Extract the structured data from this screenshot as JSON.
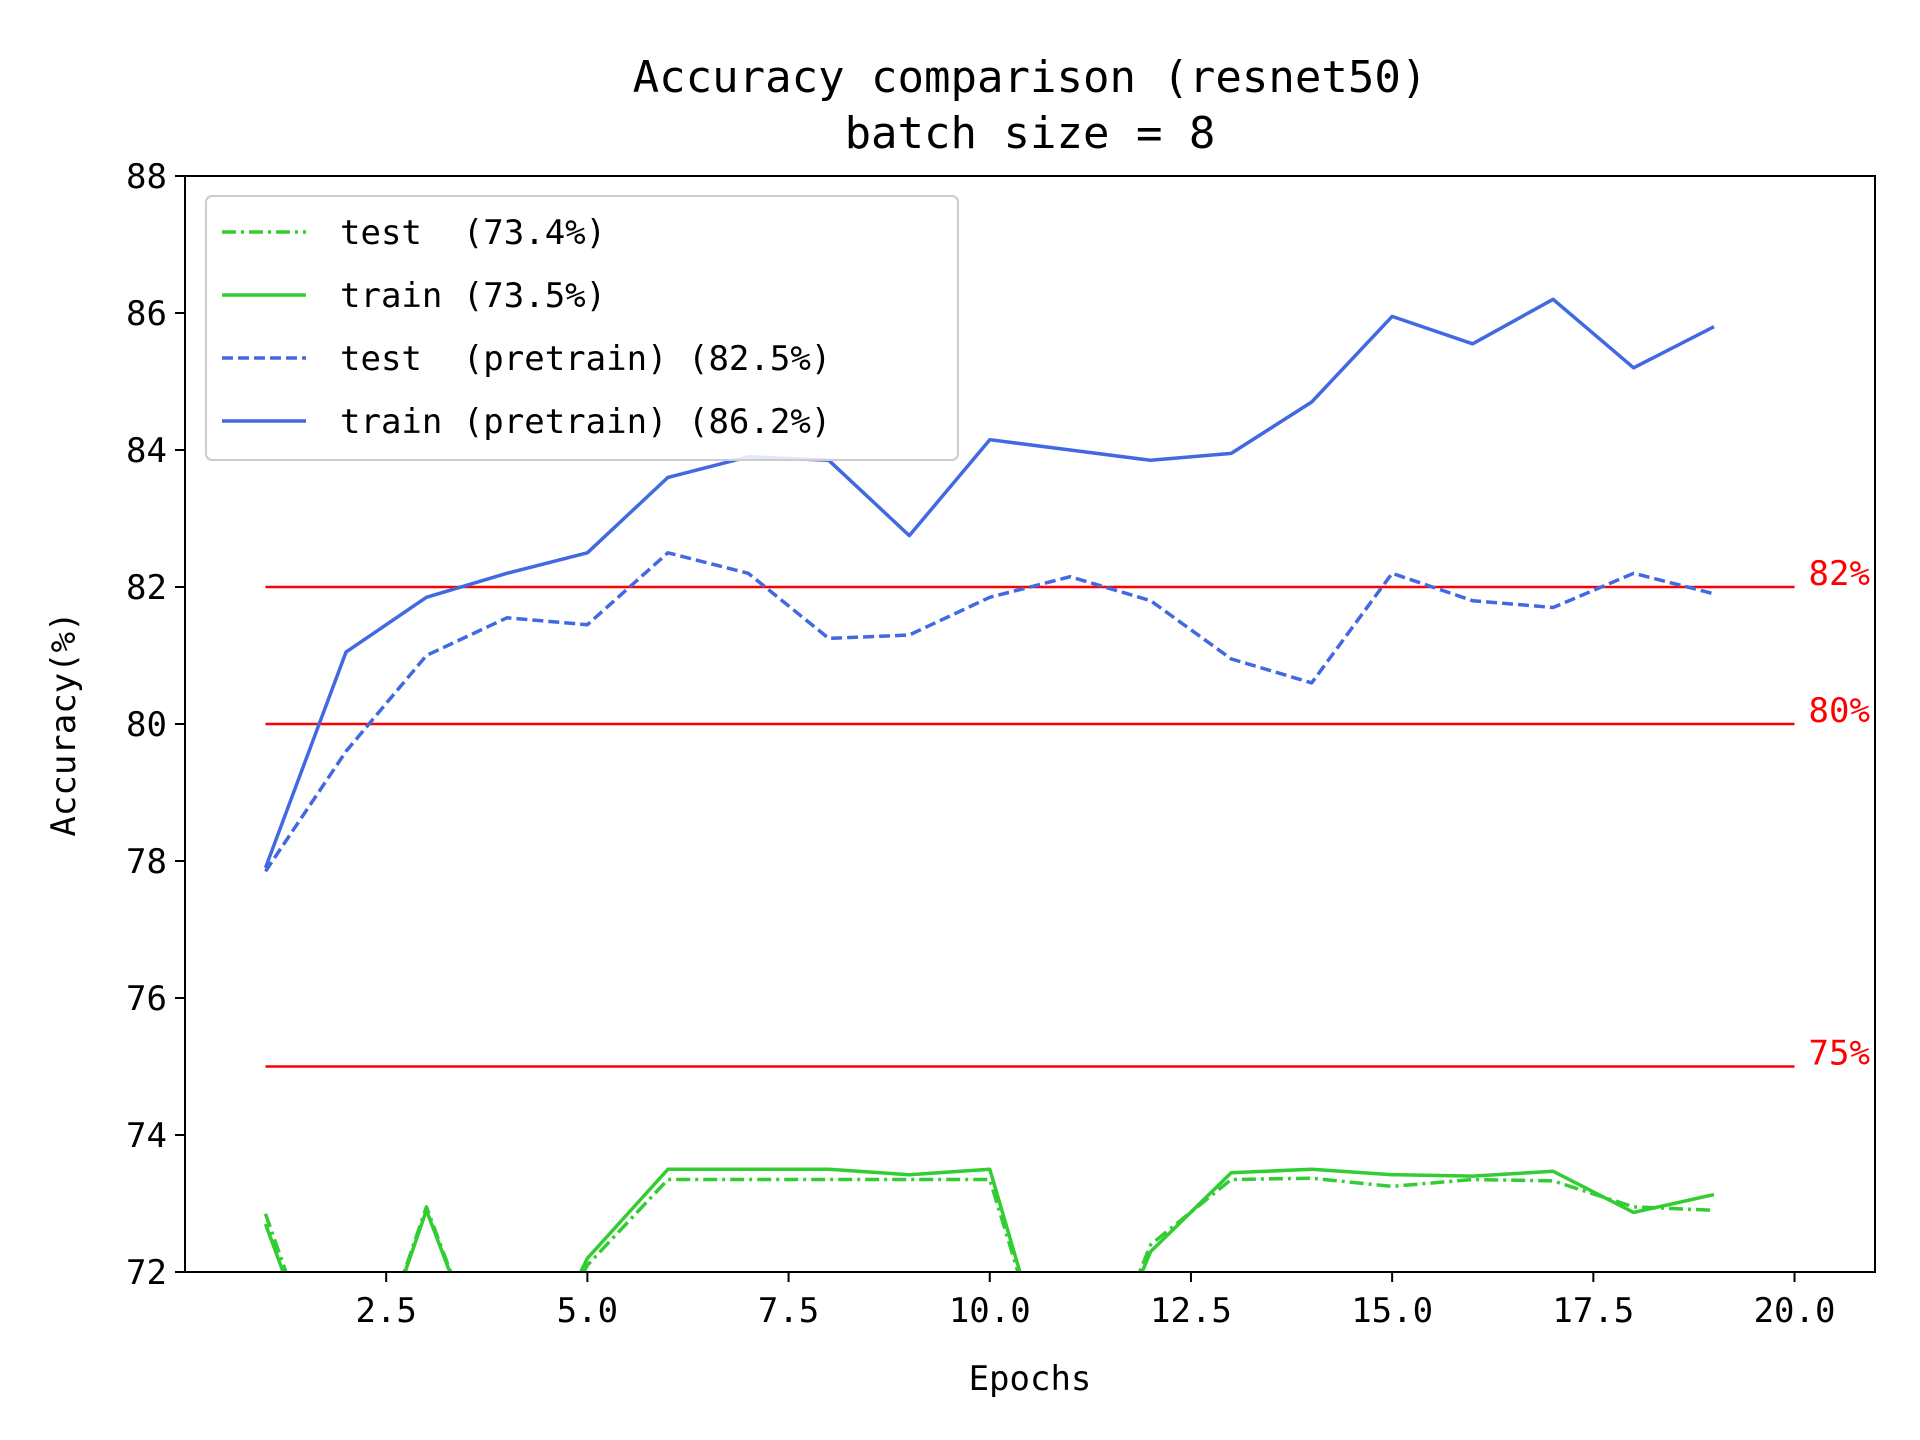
{
  "chart_data": {
    "type": "line",
    "title": "Accuracy comparison (resnet50)",
    "subtitle": "batch size = 8",
    "xlabel": "Epochs",
    "ylabel": "Accuracy(%)",
    "xlim": [
      0.0,
      21.0
    ],
    "ylim": [
      72,
      88
    ],
    "xticks": [
      2.5,
      5.0,
      7.5,
      10.0,
      12.5,
      15.0,
      17.5,
      20.0
    ],
    "xtick_labels": [
      "2.5",
      "5.0",
      "7.5",
      "10.0",
      "12.5",
      "15.0",
      "17.5",
      "20.0"
    ],
    "yticks": [
      72,
      74,
      76,
      78,
      80,
      82,
      84,
      86,
      88
    ],
    "ytick_labels": [
      "72",
      "74",
      "76",
      "78",
      "80",
      "82",
      "84",
      "86",
      "88"
    ],
    "grid": false,
    "legend_position": "top-left",
    "x": [
      1,
      2,
      3,
      4,
      5,
      6,
      7,
      8,
      9,
      10,
      11,
      12,
      13,
      14,
      15,
      16,
      17,
      18,
      19
    ],
    "series": [
      {
        "name": "test  (73.4%)",
        "color": "#32cd32",
        "style": "dashdot",
        "values": [
          72.85,
          69.5,
          72.95,
          69.8,
          72.1,
          73.35,
          73.35,
          73.35,
          73.35,
          73.35,
          69.5,
          72.4,
          73.35,
          73.37,
          73.25,
          73.35,
          73.33,
          72.95,
          72.9
        ]
      },
      {
        "name": "train (73.5%)",
        "color": "#32cd32",
        "style": "solid",
        "values": [
          72.7,
          69.5,
          72.9,
          69.8,
          72.2,
          73.5,
          73.5,
          73.5,
          73.42,
          73.5,
          69.5,
          72.3,
          73.45,
          73.5,
          73.42,
          73.4,
          73.47,
          72.87,
          73.13
        ]
      },
      {
        "name": "test  (pretrain) (82.5%)",
        "color": "#4169e1",
        "style": "dashed",
        "values": [
          77.85,
          79.6,
          81.0,
          81.55,
          81.45,
          82.5,
          82.2,
          81.25,
          81.3,
          81.85,
          82.15,
          81.8,
          80.95,
          80.6,
          82.2,
          81.8,
          81.7,
          82.2,
          81.9
        ]
      },
      {
        "name": "train (pretrain) (86.2%)",
        "color": "#4169e1",
        "style": "solid",
        "values": [
          77.9,
          81.05,
          81.85,
          82.2,
          82.5,
          83.6,
          83.9,
          83.85,
          82.75,
          84.15,
          84.0,
          83.85,
          83.95,
          84.7,
          85.95,
          85.55,
          86.2,
          85.2,
          85.8
        ]
      }
    ],
    "reference_lines": [
      {
        "y": 82,
        "label": "82%",
        "color": "#ff0000",
        "x_start": 1,
        "x_end": 20
      },
      {
        "y": 80,
        "label": "80%",
        "color": "#ff0000",
        "x_start": 1,
        "x_end": 20
      },
      {
        "y": 75,
        "label": "75%",
        "color": "#ff0000",
        "x_start": 1,
        "x_end": 20
      }
    ]
  }
}
